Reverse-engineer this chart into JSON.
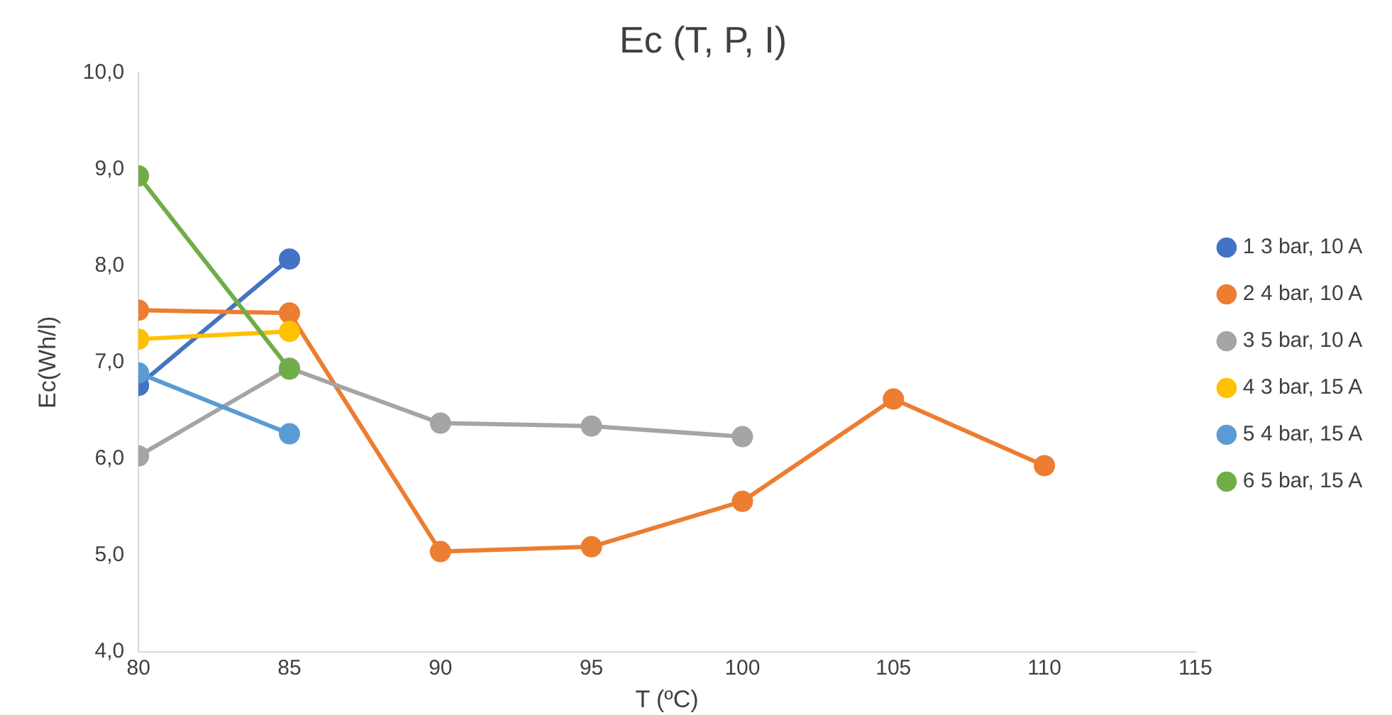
{
  "chart_data": {
    "type": "line",
    "title": "Ec (T, P, I)",
    "xlabel": "T (ºC)",
    "ylabel": "Ec(Wh/l)",
    "xlim": [
      80,
      115
    ],
    "xticks": [
      80,
      85,
      90,
      95,
      100,
      105,
      110,
      115
    ],
    "ylim": [
      4,
      10
    ],
    "yticks": [
      {
        "value": 4,
        "label": "4,0"
      },
      {
        "value": 5,
        "label": "5,0"
      },
      {
        "value": 6,
        "label": "6,0"
      },
      {
        "value": 7,
        "label": "7,0"
      },
      {
        "value": 8,
        "label": "8,0"
      },
      {
        "value": 9,
        "label": "9,0"
      },
      {
        "value": 10,
        "label": "10,0"
      }
    ],
    "grid": false,
    "legend": "right",
    "marker": "circle",
    "line_style": "solid",
    "series": [
      {
        "name": "1 3 bar, 10 A",
        "color": "#4472c4",
        "x": [
          80,
          85
        ],
        "values": [
          6.76,
          8.07
        ]
      },
      {
        "name": "2 4 bar, 10 A",
        "color": "#ed7d31",
        "x": [
          80,
          85,
          90,
          95,
          100,
          105,
          110
        ],
        "values": [
          7.54,
          7.51,
          5.04,
          5.09,
          5.56,
          6.62,
          5.93
        ]
      },
      {
        "name": "3 5 bar, 10 A",
        "color": "#a5a5a5",
        "x": [
          80,
          85,
          90,
          95,
          100
        ],
        "values": [
          6.03,
          6.94,
          6.37,
          6.34,
          6.23
        ]
      },
      {
        "name": "4 3 bar, 15 A",
        "color": "#ffc000",
        "x": [
          80,
          85
        ],
        "values": [
          7.24,
          7.32
        ]
      },
      {
        "name": "5 4 bar, 15 A",
        "color": "#5b9bd5",
        "x": [
          80,
          85
        ],
        "values": [
          6.89,
          6.26
        ]
      },
      {
        "name": "6 5 bar, 15 A",
        "color": "#70ad47",
        "x": [
          80,
          85
        ],
        "values": [
          8.93,
          6.93
        ]
      }
    ]
  }
}
